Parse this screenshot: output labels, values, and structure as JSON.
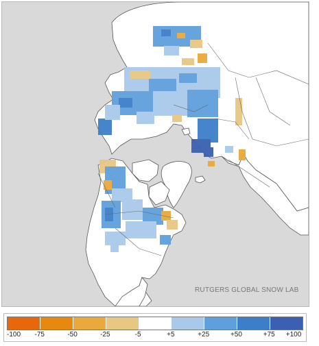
{
  "credit": "RUTGERS GLOBAL SNOW LAB",
  "legend": {
    "ticks": [
      "-100",
      "-75",
      "-50",
      "-25",
      "-5",
      "+5",
      "+25",
      "+50",
      "+75",
      "+100"
    ],
    "colors": [
      "#e8670a",
      "#e8890f",
      "#e9a93c",
      "#e8c782",
      "#ffffff",
      "#a9c9ea",
      "#5fa0dc",
      "#3d7ec9",
      "#3b5fb1"
    ]
  },
  "map": {
    "projection": "north polar stereographic",
    "ocean_color": "#d9d9d9",
    "land_color": "#ffffff",
    "border_color": "#555555"
  }
}
